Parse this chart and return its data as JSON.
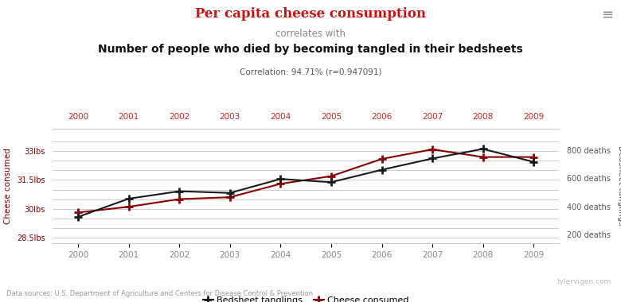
{
  "years": [
    2000,
    2001,
    2002,
    2003,
    2004,
    2005,
    2006,
    2007,
    2008,
    2009
  ],
  "cheese_lbs": [
    29.8,
    30.1,
    30.5,
    30.6,
    31.3,
    31.7,
    32.6,
    33.1,
    32.7,
    32.7
  ],
  "bedsheet_deaths": [
    327,
    456,
    509,
    497,
    596,
    573,
    661,
    741,
    809,
    717
  ],
  "title_red": "Per capita cheese consumption",
  "title_sub": "correlates with",
  "title_black": "Number of people who died by becoming tangled in their bedsheets",
  "correlation_text": "Correlation: 94.71% (r=0.947091)",
  "ylabel_left": "Cheese consumed",
  "ylabel_right": "Bedsheet tanglings",
  "yticks_left": [
    28.5,
    29.0,
    29.5,
    30.0,
    30.5,
    31.0,
    31.5,
    32.0,
    32.5,
    33.0,
    33.5
  ],
  "ytick_labels_left": [
    "28.5lbs",
    "",
    "",
    "30lbs",
    "",
    "",
    "31.5lbs",
    "",
    "",
    "33lbs",
    ""
  ],
  "yticks_right": [
    200,
    300,
    400,
    500,
    600,
    700,
    800,
    900
  ],
  "ytick_labels_right": [
    "200 deaths",
    "",
    "400 deaths",
    "",
    "600 deaths",
    "",
    "800 deaths",
    ""
  ],
  "ylim_left": [
    28.2,
    34.2
  ],
  "ylim_right": [
    141,
    955
  ],
  "cheese_color": "#8B0000",
  "bedsheet_color": "#1a1a1a",
  "grid_color": "#cccccc",
  "bg_color": "#ffffff",
  "source_text": "Data sources: U.S. Department of Agriculture and Centers for Disease Control & Prevention",
  "watermark": "tylervigen.com",
  "legend_bedsheet": "Bedsheet tanglings",
  "legend_cheese": "Cheese consumed",
  "top_xtick_color": "#cc2222",
  "bottom_xtick_color": "#888888",
  "corr_color": "#555555"
}
